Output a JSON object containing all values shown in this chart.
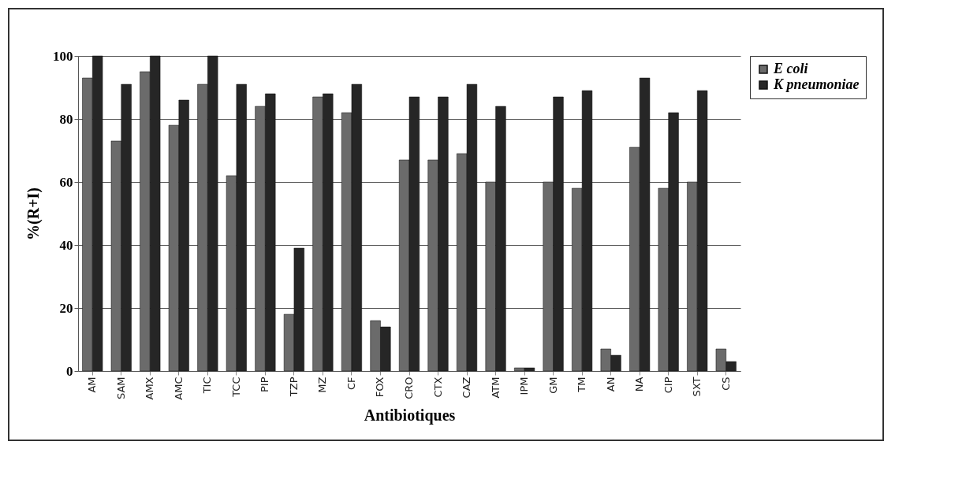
{
  "chart_data": {
    "type": "bar",
    "xlabel": "Antibiotiques",
    "ylabel": "%(R+I)",
    "categories": [
      "AM",
      "SAM",
      "AMX",
      "AMC",
      "TIC",
      "TCC",
      "PIP",
      "TZP",
      "MZ",
      "CF",
      "FOX",
      "CRO",
      "CTX",
      "CAZ",
      "ATM",
      "IPM",
      "GM",
      "TM",
      "AN",
      "NA",
      "CIP",
      "SXT",
      "CS"
    ],
    "series": [
      {
        "name": "E coli",
        "color": "#6b6b6b",
        "values": [
          93,
          73,
          95,
          78,
          91,
          62,
          84,
          18,
          87,
          82,
          16,
          67,
          67,
          69,
          60,
          1,
          60,
          58,
          7,
          71,
          58,
          60,
          7
        ]
      },
      {
        "name": "K pneumoniae",
        "color": "#262626",
        "values": [
          100,
          91,
          100,
          86,
          100,
          91,
          88,
          39,
          88,
          91,
          14,
          87,
          87,
          91,
          84,
          1,
          87,
          89,
          5,
          93,
          82,
          89,
          3
        ]
      }
    ],
    "ylim": [
      0,
      100
    ],
    "yticks": [
      0,
      20,
      40,
      60,
      80,
      100
    ],
    "grid": "y",
    "legend": "right"
  }
}
